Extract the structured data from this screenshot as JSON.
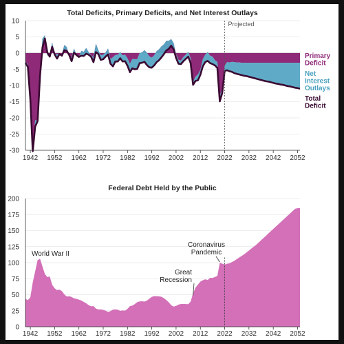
{
  "colors": {
    "primary_deficit": "#8e2a78",
    "net_interest": "#56a7c4",
    "total_deficit": "#3a0a32",
    "debt_area": "#d370b8",
    "axis": "#333333",
    "grid": "#dddddd",
    "label_primary": "#8e2a78",
    "label_interest": "#4aa0bf",
    "label_total": "#3a0a32"
  },
  "chart_data": [
    {
      "type": "area",
      "title": "Total Deficits, Primary Deficits, and Net Interest Outlays",
      "xlabel": "",
      "ylabel": "",
      "xlim": [
        1940,
        2053
      ],
      "ylim": [
        -30,
        10
      ],
      "x_ticks": [
        1942,
        1952,
        1962,
        1972,
        1982,
        1992,
        2002,
        2012,
        2022,
        2032,
        2042,
        2052
      ],
      "y_ticks": [
        10,
        5,
        0,
        -5,
        -10,
        -15,
        -20,
        -25,
        -30
      ],
      "projection_start": 2022,
      "projection_label": "Projected",
      "labels": {
        "primary": [
          "Primary",
          "Deficit"
        ],
        "interest": [
          "Net",
          "Interest",
          "Outlays"
        ],
        "total": [
          "Total",
          "Deficit"
        ]
      },
      "series": [
        {
          "name": "Primary Deficit",
          "x": [
            1940,
            1941,
            1942,
            1943,
            1944,
            1945,
            1946,
            1947,
            1948,
            1949,
            1950,
            1951,
            1952,
            1953,
            1954,
            1955,
            1956,
            1957,
            1958,
            1959,
            1960,
            1961,
            1962,
            1963,
            1964,
            1965,
            1966,
            1967,
            1968,
            1969,
            1970,
            1971,
            1972,
            1973,
            1974,
            1975,
            1976,
            1977,
            1978,
            1979,
            1980,
            1981,
            1982,
            1983,
            1984,
            1985,
            1986,
            1987,
            1988,
            1989,
            1990,
            1991,
            1992,
            1993,
            1994,
            1995,
            1996,
            1997,
            1998,
            1999,
            2000,
            2001,
            2002,
            2003,
            2004,
            2005,
            2006,
            2007,
            2008,
            2009,
            2010,
            2011,
            2012,
            2013,
            2014,
            2015,
            2016,
            2017,
            2018,
            2019,
            2020,
            2021,
            2022,
            2023,
            2024,
            2025,
            2026,
            2027,
            2028,
            2029,
            2030,
            2031,
            2032,
            2033,
            2034,
            2035,
            2036,
            2037,
            2038,
            2039,
            2040,
            2041,
            2042,
            2043,
            2044,
            2045,
            2046,
            2047,
            2048,
            2049,
            2050,
            2051,
            2052,
            2053
          ],
          "values": [
            -2.7,
            -3.4,
            -12.8,
            -28.9,
            -20.7,
            -20.9,
            -6.1,
            4.5,
            5.5,
            -0.8,
            -0.3,
            3.3,
            -0.1,
            -0.4,
            -0.1,
            -0.4,
            2.5,
            1.9,
            -1.0,
            -1.3,
            1.4,
            -0.5,
            -1.2,
            0.7,
            0.4,
            1.6,
            0.3,
            -0.7,
            -1.2,
            2.9,
            0.9,
            -0.7,
            -0.5,
            0.2,
            1.4,
            -1.9,
            -1.3,
            -0.6,
            -0.5,
            0.3,
            -0.7,
            -0.5,
            -1.6,
            -3.3,
            -1.8,
            -1.9,
            -1.9,
            0.0,
            0.2,
            0.9,
            0.1,
            -1.0,
            -1.4,
            -0.7,
            0.6,
            1.2,
            2.1,
            2.7,
            3.8,
            3.8,
            4.3,
            3.1,
            -0.4,
            -2.1,
            -2.3,
            -1.2,
            -0.5,
            0.4,
            -1.6,
            -8.9,
            -7.3,
            -6.6,
            -5.2,
            -1.9,
            -0.5,
            0.3,
            -0.8,
            -1.1,
            -2.2,
            -2.7,
            -13.4,
            -10.8,
            -3.9,
            -2.8,
            -2.9,
            -2.7,
            -2.8,
            -2.9,
            -2.9,
            -3.0,
            -3.0,
            -3.0,
            -3.0,
            -3.0,
            -3.0,
            -3.0,
            -3.0,
            -3.0,
            -3.0,
            -3.0,
            -3.0,
            -3.0,
            -3.0,
            -3.0,
            -3.0,
            -3.0,
            -3.0,
            -3.0,
            -3.0,
            -3.0,
            -3.0,
            -3.0,
            -3.0,
            -3.0
          ]
        },
        {
          "name": "Net Interest Outlays",
          "x": [
            1940,
            1945,
            1950,
            1955,
            1960,
            1965,
            1970,
            1975,
            1980,
            1985,
            1990,
            1995,
            2000,
            2005,
            2010,
            2015,
            2020,
            2022,
            2025,
            2030,
            2035,
            2040,
            2045,
            2050,
            2053
          ],
          "values": [
            1.0,
            1.4,
            1.7,
            1.3,
            1.4,
            1.3,
            1.4,
            1.5,
            1.9,
            3.1,
            3.2,
            3.1,
            2.3,
            1.5,
            1.4,
            1.3,
            1.6,
            1.9,
            3.1,
            3.9,
            4.7,
            5.6,
            6.5,
            7.5,
            7.9
          ]
        },
        {
          "name": "Total Deficit",
          "x": [
            1940,
            1941,
            1942,
            1943,
            1944,
            1945,
            1946,
            1947,
            1948,
            1949,
            1950,
            1951,
            1952,
            1953,
            1954,
            1955,
            1956,
            1957,
            1958,
            1959,
            1960,
            1961,
            1962,
            1963,
            1964,
            1965,
            1966,
            1967,
            1968,
            1969,
            1970,
            1971,
            1972,
            1973,
            1974,
            1975,
            1976,
            1977,
            1978,
            1979,
            1980,
            1981,
            1982,
            1983,
            1984,
            1985,
            1986,
            1987,
            1988,
            1989,
            1990,
            1991,
            1992,
            1993,
            1994,
            1995,
            1996,
            1997,
            1998,
            1999,
            2000,
            2001,
            2002,
            2003,
            2004,
            2005,
            2006,
            2007,
            2008,
            2009,
            2010,
            2011,
            2012,
            2013,
            2014,
            2015,
            2016,
            2017,
            2018,
            2019,
            2020,
            2021,
            2022,
            2023,
            2024,
            2025,
            2026,
            2027,
            2028,
            2029,
            2030,
            2031,
            2032,
            2033,
            2034,
            2035,
            2036,
            2037,
            2038,
            2039,
            2040,
            2041,
            2042,
            2043,
            2044,
            2045,
            2046,
            2047,
            2048,
            2049,
            2050,
            2051,
            2052,
            2053
          ],
          "values": [
            -3.0,
            -4.3,
            -14.2,
            -30.3,
            -22.7,
            -21.0,
            -7.0,
            1.7,
            4.5,
            0.2,
            -1.1,
            1.9,
            -0.4,
            -1.7,
            -0.3,
            -0.8,
            0.9,
            0.7,
            -0.6,
            -2.5,
            0.1,
            -0.6,
            -1.2,
            -0.8,
            -0.9,
            -0.2,
            -0.5,
            -1.1,
            -2.8,
            0.3,
            -0.3,
            -2.1,
            -1.9,
            -1.1,
            -0.4,
            -3.3,
            -4.1,
            -2.6,
            -2.6,
            -1.6,
            -2.6,
            -2.5,
            -3.9,
            -5.9,
            -4.7,
            -5.0,
            -4.9,
            -3.1,
            -3.0,
            -2.7,
            -3.7,
            -4.4,
            -4.5,
            -3.8,
            -2.8,
            -2.2,
            -1.3,
            -0.3,
            0.8,
            1.3,
            2.3,
            1.2,
            -1.5,
            -3.3,
            -3.4,
            -2.5,
            -1.8,
            -1.1,
            -3.1,
            -9.8,
            -8.6,
            -8.4,
            -6.7,
            -4.1,
            -2.8,
            -2.4,
            -3.1,
            -3.4,
            -3.8,
            -4.6,
            -14.9,
            -12.3,
            -5.5,
            -5.3,
            -5.6,
            -5.8,
            -6.2,
            -6.4,
            -6.6,
            -6.8,
            -7.0,
            -7.1,
            -7.3,
            -7.5,
            -7.7,
            -7.9,
            -8.1,
            -8.3,
            -8.5,
            -8.7,
            -8.8,
            -9.0,
            -9.2,
            -9.4,
            -9.5,
            -9.7,
            -9.8,
            -10.0,
            -10.2,
            -10.3,
            -10.5,
            -10.7,
            -10.8,
            -11.0
          ]
        }
      ]
    },
    {
      "type": "area",
      "title": "Federal Debt Held by the Public",
      "xlabel": "",
      "ylabel": "",
      "xlim": [
        1940,
        2053
      ],
      "ylim": [
        0,
        200
      ],
      "x_ticks": [
        1942,
        1952,
        1962,
        1972,
        1982,
        1992,
        2002,
        2012,
        2022,
        2032,
        2042,
        2052
      ],
      "y_ticks": [
        200,
        175,
        150,
        125,
        100,
        75,
        50,
        25,
        0
      ],
      "projection_start": 2022,
      "annotations": [
        {
          "lines": [
            "World War II"
          ],
          "x": 1946,
          "y": 106
        },
        {
          "lines": [
            "Great",
            "Recession"
          ],
          "x": 2009,
          "y": 52
        },
        {
          "lines": [
            "Coronavirus",
            "Pandemic"
          ],
          "x": 2020,
          "y": 100
        }
      ],
      "series": [
        {
          "name": "Federal Debt Held by the Public",
          "x": [
            1940,
            1941,
            1942,
            1943,
            1944,
            1945,
            1946,
            1947,
            1948,
            1949,
            1950,
            1951,
            1952,
            1953,
            1954,
            1955,
            1956,
            1957,
            1958,
            1959,
            1960,
            1961,
            1962,
            1963,
            1964,
            1965,
            1966,
            1967,
            1968,
            1969,
            1970,
            1971,
            1972,
            1973,
            1974,
            1975,
            1976,
            1977,
            1978,
            1979,
            1980,
            1981,
            1982,
            1983,
            1984,
            1985,
            1986,
            1987,
            1988,
            1989,
            1990,
            1991,
            1992,
            1993,
            1994,
            1995,
            1996,
            1997,
            1998,
            1999,
            2000,
            2001,
            2002,
            2003,
            2004,
            2005,
            2006,
            2007,
            2008,
            2009,
            2010,
            2011,
            2012,
            2013,
            2014,
            2015,
            2016,
            2017,
            2018,
            2019,
            2020,
            2021,
            2022,
            2023,
            2024,
            2025,
            2026,
            2027,
            2028,
            2029,
            2030,
            2031,
            2032,
            2033,
            2034,
            2035,
            2036,
            2037,
            2038,
            2039,
            2040,
            2041,
            2042,
            2043,
            2044,
            2045,
            2046,
            2047,
            2048,
            2049,
            2050,
            2051,
            2052,
            2053
          ],
          "values": [
            43.6,
            41.5,
            45.9,
            69.2,
            86.4,
            103.9,
            106.1,
            93.9,
            82.4,
            77.4,
            78.5,
            65.5,
            60.1,
            57.1,
            57.9,
            55.7,
            50.6,
            47.2,
            47.7,
            46.4,
            44.3,
            43.5,
            42.3,
            41.0,
            38.7,
            36.7,
            33.7,
            31.8,
            32.2,
            28.3,
            27.0,
            27.1,
            26.4,
            25.1,
            23.1,
            24.5,
            26.7,
            27.1,
            26.6,
            24.9,
            25.5,
            25.2,
            27.9,
            32.1,
            33.1,
            35.3,
            38.4,
            39.5,
            39.8,
            39.3,
            40.8,
            43.8,
            46.6,
            47.8,
            47.7,
            47.5,
            46.8,
            44.5,
            41.6,
            38.2,
            33.6,
            31.4,
            32.5,
            34.5,
            35.5,
            35.6,
            35.3,
            35.2,
            39.2,
            52.3,
            60.9,
            65.9,
            70.4,
            72.6,
            74.1,
            72.9,
            76.4,
            76.2,
            77.6,
            79.4,
            99.8,
            98.4,
            97.0,
            98.2,
            99.0,
            101.0,
            103.0,
            105.5,
            108.0,
            110.5,
            113.0,
            116.0,
            119.0,
            122.0,
            125.0,
            128.0,
            131.5,
            135.0,
            138.5,
            142.0,
            145.5,
            149.0,
            152.5,
            156.0,
            159.5,
            163.0,
            166.5,
            170.0,
            173.5,
            177.0,
            180.5,
            184.0,
            185.0,
            185.0
          ]
        }
      ]
    }
  ]
}
